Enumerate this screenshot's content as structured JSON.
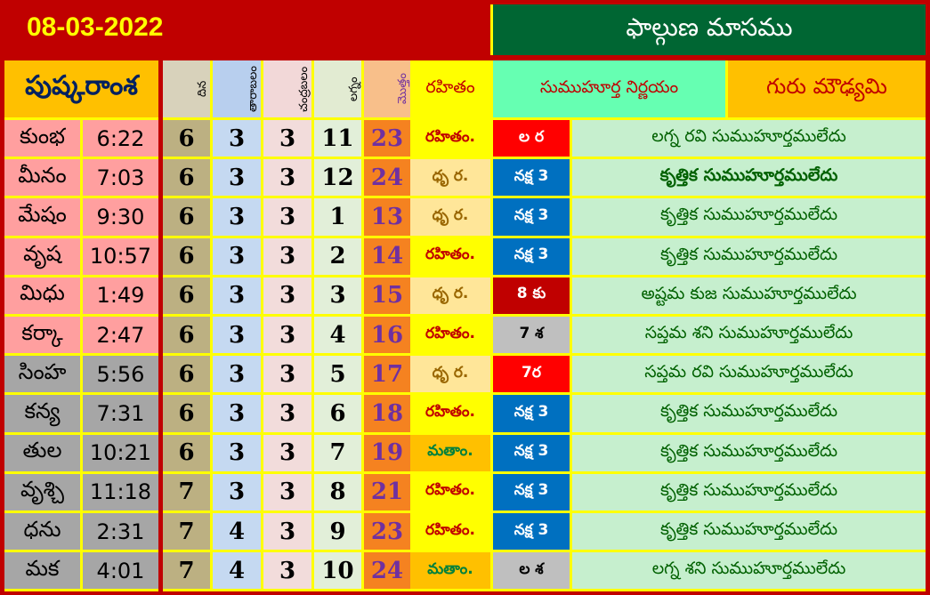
{
  "date": "08-03-2022",
  "month": "ఫాల్గుణ మాసము",
  "headers": {
    "pushkaramsha": "పుష్కరాంశ",
    "c1": "దిన",
    "c2": "తారాబలం",
    "c3": "చంద్రబలం",
    "c4": "లగ్నం",
    "c5": "మొత్తం",
    "rahitam": "రహితం",
    "nirnayam": "సుముహూర్త నిర్ణయం",
    "guru": "గురు మౌఢ్యమి"
  },
  "colors": {
    "border": "#c00000",
    "grid": "#ffff00",
    "pink": "#ff9f9f",
    "gray": "#a6a6a6",
    "red": "#ff0000",
    "darkred": "#c00000",
    "blue": "#0070c0",
    "lightgray": "#bfbfbf"
  },
  "rows": [
    {
      "rasi": "కుంభ",
      "time": "6:22",
      "a": "6",
      "b": "3",
      "c": "3",
      "d": "11",
      "t": "23",
      "r": "రహితం.",
      "rt": "y",
      "code": "ల ర",
      "ct": "red",
      "desc": "లగ్న రవి సుముహూర్తములేదు"
    },
    {
      "rasi": "మీనం",
      "time": "7:03",
      "a": "6",
      "b": "3",
      "c": "3",
      "d": "12",
      "t": "24",
      "r": "ధృ ర.",
      "rt": "l",
      "code": "నక్ష 3",
      "ct": "blue",
      "desc": "కృత్తిక సుముహూర్తములేదు"
    },
    {
      "rasi": "మేషం",
      "time": "9:30",
      "a": "6",
      "b": "3",
      "c": "3",
      "d": "1",
      "t": "13",
      "r": "ధృ ర.",
      "rt": "l",
      "code": "నక్ష 3",
      "ct": "blue",
      "desc": "కృత్తిక సుముహూర్తములేదు"
    },
    {
      "rasi": "వృష",
      "time": "10:57",
      "a": "6",
      "b": "3",
      "c": "3",
      "d": "2",
      "t": "14",
      "r": "రహితం.",
      "rt": "y",
      "code": "నక్ష 3",
      "ct": "blue",
      "desc": "కృత్తిక సుముహూర్తములేదు"
    },
    {
      "rasi": "మిధు",
      "time": "1:49",
      "a": "6",
      "b": "3",
      "c": "3",
      "d": "3",
      "t": "15",
      "r": "ధృ ర.",
      "rt": "l",
      "code": "8 కు",
      "ct": "darkred",
      "desc": "అష్టమ కుజ సుముహూర్తములేదు"
    },
    {
      "rasi": "కర్కా",
      "time": "2:47",
      "a": "6",
      "b": "3",
      "c": "3",
      "d": "4",
      "t": "16",
      "r": "రహితం.",
      "rt": "y",
      "code": "7 శ",
      "ct": "lightgray",
      "desc": "సప్తమ శని సుముహూర్తములేదు"
    },
    {
      "rasi": "సింహ",
      "time": "5:56",
      "a": "6",
      "b": "3",
      "c": "3",
      "d": "5",
      "t": "17",
      "r": "ధృ ర.",
      "rt": "l",
      "code": "7ర",
      "ct": "red",
      "desc": "సప్తమ రవి సుముహూర్తములేదు"
    },
    {
      "rasi": "కన్య",
      "time": "7:31",
      "a": "6",
      "b": "3",
      "c": "3",
      "d": "6",
      "t": "18",
      "r": "రహితం.",
      "rt": "y",
      "code": "నక్ష 3",
      "ct": "blue",
      "desc": "కృత్తిక సుముహూర్తములేదు"
    },
    {
      "rasi": "తుల",
      "time": "10:21",
      "a": "6",
      "b": "3",
      "c": "3",
      "d": "7",
      "t": "19",
      "r": "మతాం.",
      "rt": "o",
      "code": "నక్ష 3",
      "ct": "blue",
      "desc": "కృత్తిక సుముహూర్తములేదు"
    },
    {
      "rasi": "వృశ్చి",
      "time": "11:18",
      "a": "7",
      "b": "3",
      "c": "3",
      "d": "8",
      "t": "21",
      "r": "రహితం.",
      "rt": "y",
      "code": "నక్ష 3",
      "ct": "blue",
      "desc": "కృత్తిక సుముహూర్తములేదు"
    },
    {
      "rasi": "ధను",
      "time": "2:31",
      "a": "7",
      "b": "4",
      "c": "3",
      "d": "9",
      "t": "23",
      "r": "రహితం.",
      "rt": "y",
      "code": "నక్ష 3",
      "ct": "blue",
      "desc": "కృత్తిక సుముహూర్తములేదు"
    },
    {
      "rasi": "మక",
      "time": "4:01",
      "a": "7",
      "b": "4",
      "c": "3",
      "d": "10",
      "t": "24",
      "r": "మతాం.",
      "rt": "o",
      "code": "ల శ",
      "ct": "lightgray",
      "desc": "లగ్న శని సుముహూర్తములేదు"
    }
  ]
}
